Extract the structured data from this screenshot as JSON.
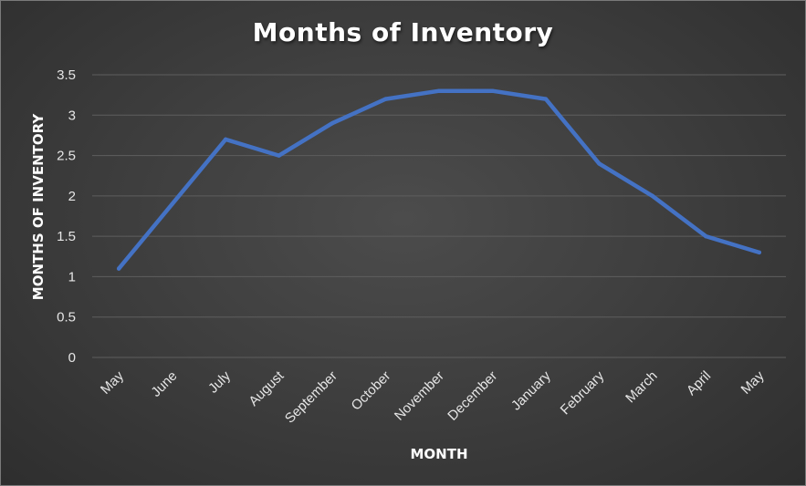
{
  "chart_data": {
    "type": "line",
    "title": "Months of Inventory",
    "xlabel": "MONTH",
    "ylabel": "MONTHS OF INVENTORY",
    "categories": [
      "May",
      "June",
      "July",
      "August",
      "September",
      "October",
      "November",
      "December",
      "January",
      "February",
      "March",
      "April",
      "May"
    ],
    "series": [
      {
        "values": [
          1.1,
          1.9,
          2.7,
          2.5,
          2.9,
          3.2,
          3.3,
          3.3,
          3.2,
          2.4,
          2.0,
          1.5,
          1.3
        ]
      }
    ],
    "ylim": [
      0,
      3.5
    ],
    "yticks": [
      "0",
      "0.5",
      "1",
      "1.5",
      "2",
      "2.5",
      "3",
      "3.5"
    ],
    "grid": "horizontal",
    "legend": "none",
    "colors": {
      "line": "#4472C4",
      "gridline": "#5e5e5e",
      "text": "#e6e6e6"
    }
  }
}
